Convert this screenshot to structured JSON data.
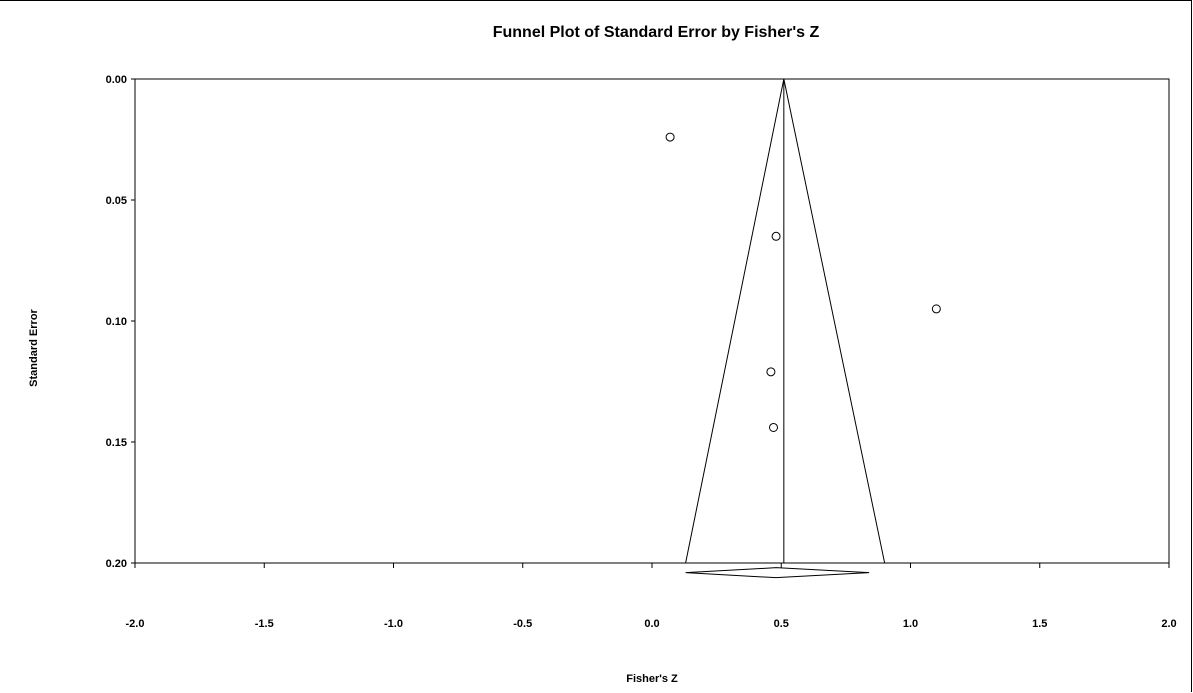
{
  "chart_data": {
    "type": "scatter",
    "title": "Funnel Plot of Standard Error by Fisher's Z",
    "xlabel": "Fisher's Z",
    "ylabel": "Standard Error",
    "xlim": [
      -2.0,
      2.0
    ],
    "ylim": [
      0.0,
      0.2
    ],
    "y_inverted": true,
    "x_ticks": [
      "-2.0",
      "-1.5",
      "-1.0",
      "-0.5",
      "0.0",
      "0.5",
      "1.0",
      "1.5",
      "2.0"
    ],
    "y_ticks": [
      "0.00",
      "0.05",
      "0.10",
      "0.15",
      "0.20"
    ],
    "grid": false,
    "points": [
      {
        "x": 0.07,
        "y": 0.024
      },
      {
        "x": 0.48,
        "y": 0.065
      },
      {
        "x": 1.1,
        "y": 0.095
      },
      {
        "x": 0.46,
        "y": 0.121
      },
      {
        "x": 0.47,
        "y": 0.144
      }
    ],
    "pooled_effect": 0.51,
    "funnel_bounds_at_max_se": [
      0.13,
      0.9
    ],
    "summary_diamond": {
      "center": 0.48,
      "lower": 0.13,
      "upper": 0.84,
      "y": 0.204
    }
  }
}
